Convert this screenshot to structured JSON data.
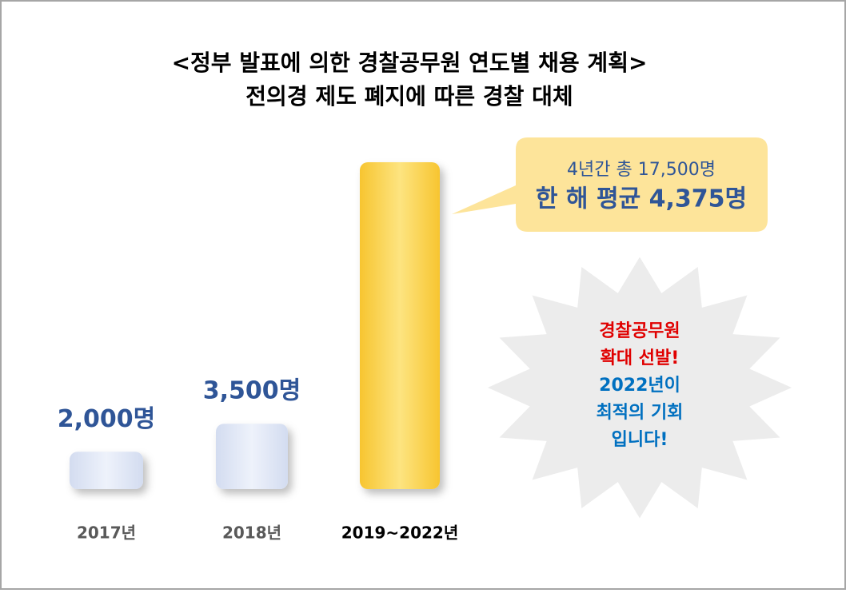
{
  "chart_data": {
    "type": "bar",
    "title": "<정부 발표에 의한 경찰공무원 연도별 채용 계획>",
    "subtitle": "전의경 제도 폐지에 따른 경찰 대체",
    "categories": [
      "2017년",
      "2018년",
      "2019~2022년"
    ],
    "values": [
      2000,
      3500,
      17500
    ],
    "value_labels": [
      "2,000명",
      "3,500명",
      null
    ],
    "colors": [
      "#dfe6f5",
      "#dfe6f5",
      "#fcd34d"
    ],
    "ylim": [
      0,
      17500
    ],
    "callout": [
      "4년간 총 17,500명",
      "한 해 평균 4,375명"
    ],
    "burst": [
      "경찰공무원",
      "확대 선발!",
      "2022년이",
      "최적의 기회",
      "입니다!"
    ]
  }
}
